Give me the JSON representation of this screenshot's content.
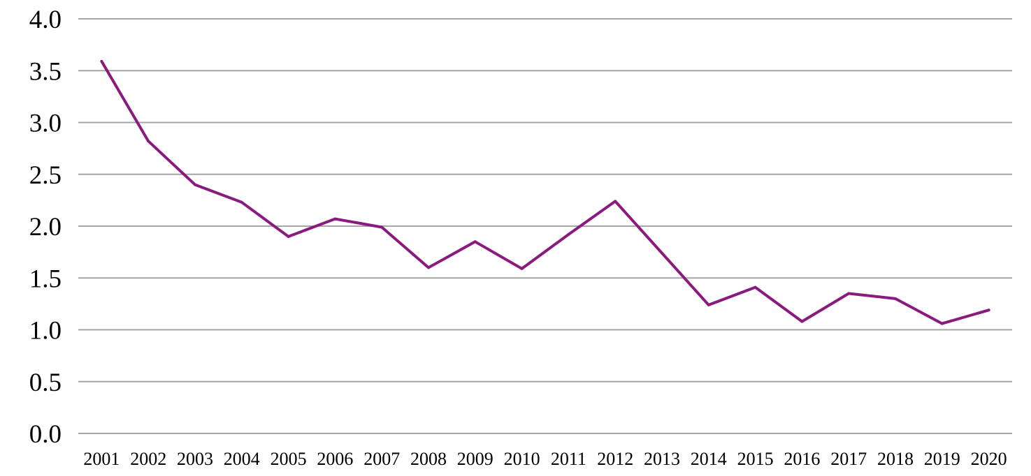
{
  "chart_data": {
    "type": "line",
    "title": "",
    "xlabel": "",
    "ylabel": "",
    "categories": [
      "2001",
      "2002",
      "2003",
      "2004",
      "2005",
      "2006",
      "2007",
      "2008",
      "2009",
      "2010",
      "2011",
      "2012",
      "2013",
      "2014",
      "2015",
      "2016",
      "2017",
      "2018",
      "2019",
      "2020"
    ],
    "series": [
      {
        "color": "#8b1a7e",
        "values": [
          3.59,
          2.82,
          2.4,
          2.23,
          1.9,
          2.07,
          1.99,
          1.6,
          1.85,
          1.59,
          1.92,
          2.24,
          1.74,
          1.24,
          1.41,
          1.08,
          1.35,
          1.3,
          1.06,
          1.19
        ]
      }
    ],
    "ylim": [
      0,
      4
    ],
    "yticks": [
      "0.0",
      "0.5",
      "1.0",
      "1.5",
      "2.0",
      "2.5",
      "3.0",
      "3.5",
      "4.0"
    ],
    "grid": true,
    "legend": "none"
  },
  "colors": {
    "series": "#8b1a7e",
    "grid": "#a6a6a6",
    "text": "#000000"
  }
}
